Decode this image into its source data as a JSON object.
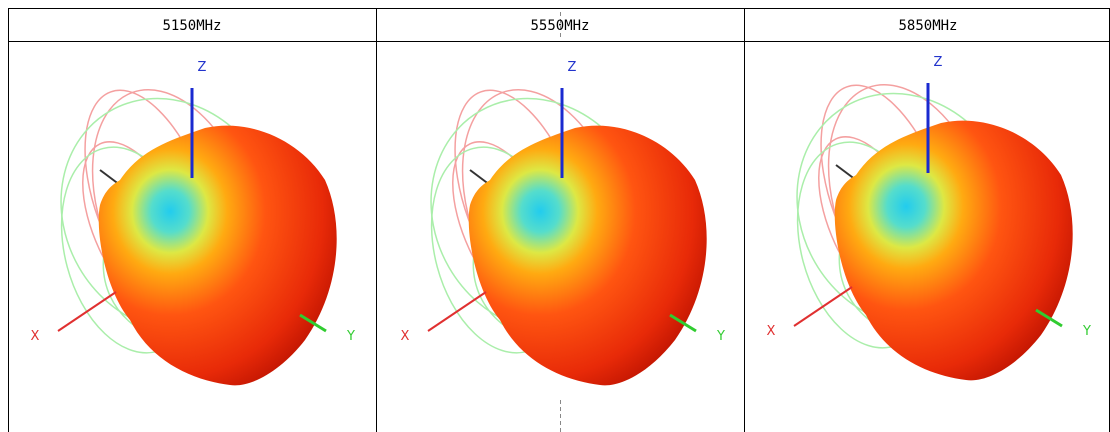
{
  "table": {
    "headers": [
      "5150MHz",
      "5550MHz",
      "5850MHz"
    ]
  },
  "axes": {
    "x": "X",
    "y": "Y",
    "z": "Z"
  }
}
